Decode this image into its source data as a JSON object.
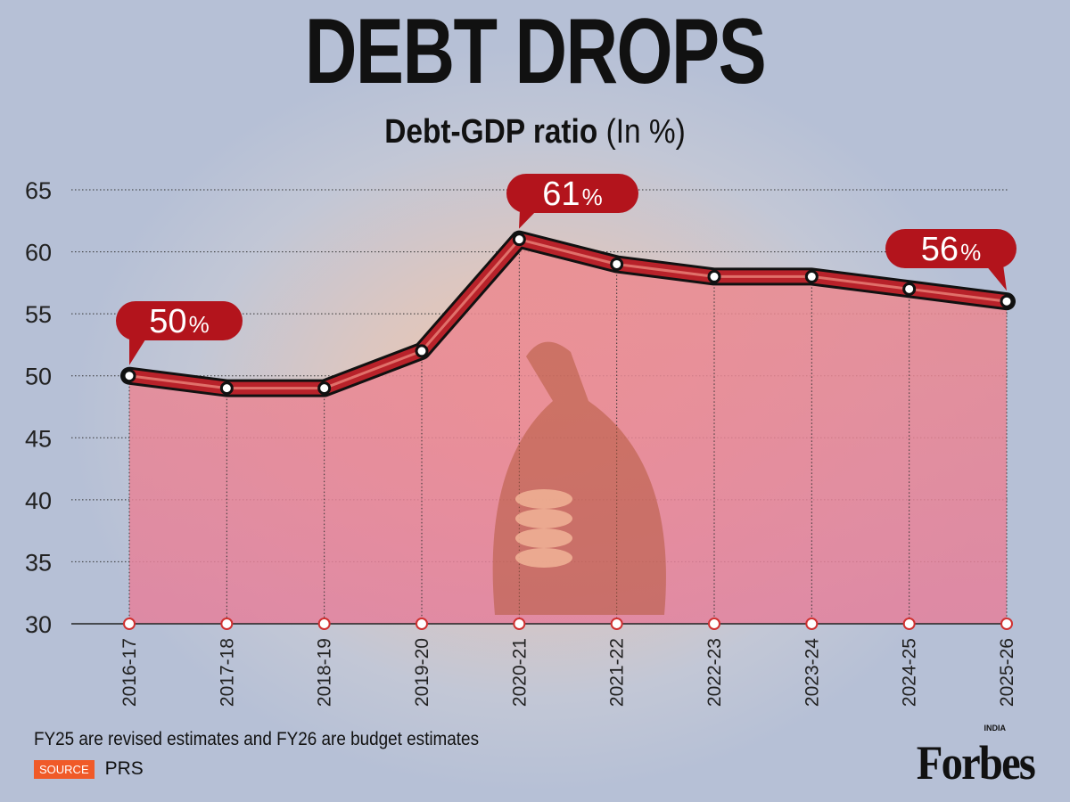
{
  "chart_data": {
    "type": "line",
    "title": "DEBT DROPS",
    "subtitle_bold": "Debt-GDP ratio",
    "subtitle_unit": "(In %)",
    "categories": [
      "2016-17",
      "2017-18",
      "2018-19",
      "2019-20",
      "2020-21",
      "2021-22",
      "2022-23",
      "2023-24",
      "2024-25",
      "2025-26"
    ],
    "series": [
      {
        "name": "Debt-GDP ratio",
        "values": [
          50,
          49,
          49,
          52,
          61,
          59,
          58,
          58,
          57,
          56
        ]
      }
    ],
    "ylim": [
      30,
      65
    ],
    "yticks": [
      30,
      35,
      40,
      45,
      50,
      55,
      60,
      65
    ],
    "grid": true,
    "annotations": [
      {
        "category": "2016-17",
        "number": "50",
        "unit": "%"
      },
      {
        "category": "2020-21",
        "number": "61",
        "unit": "%"
      },
      {
        "category": "2025-26",
        "number": "56",
        "unit": "%"
      }
    ]
  },
  "footer": {
    "note": "FY25 are revised estimates and FY26 are budget estimates",
    "source_label": "SOURCE",
    "source_value": "PRS",
    "logo": "Forbes",
    "logo_sub": "INDIA"
  },
  "colors": {
    "line": "#b8222a",
    "fill": "#e8869a",
    "source_tag": "#f05a28",
    "text": "#111111"
  }
}
